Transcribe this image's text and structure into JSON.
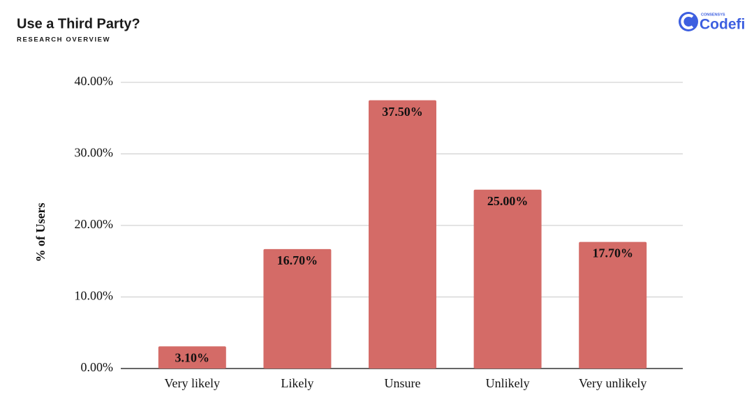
{
  "chart_data": {
    "type": "bar",
    "title": "Use a Third Party?",
    "subtitle": "RESEARCH OVERVIEW",
    "logo": {
      "brand": "CONSENSYS",
      "name": "Codefi"
    },
    "y_label": "% of Users",
    "categories": [
      "Very likely",
      "Likely",
      "Unsure",
      "Unlikely",
      "Very unlikely"
    ],
    "values": [
      3.1,
      16.7,
      37.5,
      25,
      17.7
    ],
    "value_labels": [
      "3.10%",
      "16.70%",
      "37.50%",
      "25.00%",
      "17.70%"
    ],
    "color": "#d46b67",
    "ylim": [
      0,
      40
    ],
    "yticks": [
      {
        "value": 0,
        "label": "0.00%"
      },
      {
        "value": 10,
        "label": "10.00%"
      },
      {
        "value": 20,
        "label": "20.00%"
      },
      {
        "value": 30,
        "label": "30.00%"
      },
      {
        "value": 40,
        "label": "40.00%"
      }
    ],
    "grid": true
  }
}
